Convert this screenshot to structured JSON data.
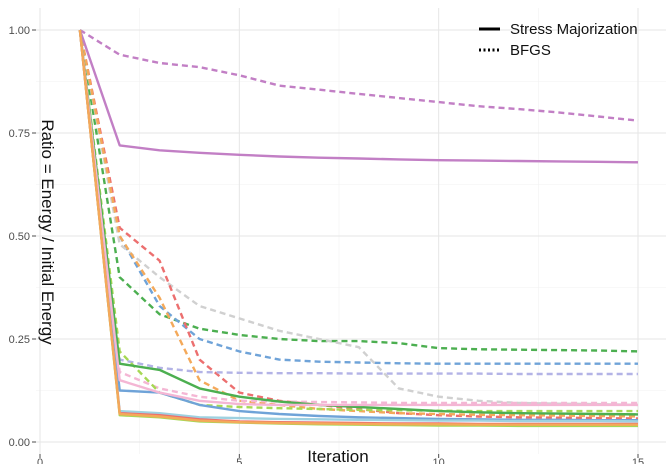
{
  "chart_data": {
    "type": "line",
    "title": "",
    "xlabel": "Iteration",
    "ylabel": "Ratio = Energy / Initial Energy",
    "xlim": [
      0,
      15
    ],
    "ylim": [
      0,
      1
    ],
    "x_ticks": [
      0,
      5,
      10,
      15
    ],
    "y_ticks": [
      0.0,
      0.25,
      0.5,
      0.75,
      1.0
    ],
    "x_tick_labels": [
      "0",
      "5",
      "10",
      "15"
    ],
    "y_tick_labels": [
      "0.00",
      "0.25",
      "0.50",
      "0.75",
      "1.00"
    ],
    "grid": true,
    "legend_position": "top-right",
    "legend": [
      {
        "name": "Stress Majorization",
        "style": "solid"
      },
      {
        "name": "BFGS",
        "style": "dotted"
      }
    ],
    "x": [
      1,
      2,
      3,
      4,
      5,
      6,
      7,
      8,
      9,
      10,
      11,
      12,
      13,
      14,
      15
    ],
    "series": [
      {
        "color": "#c27fc5",
        "dash": "solid",
        "values": [
          1.0,
          0.72,
          0.708,
          0.702,
          0.697,
          0.693,
          0.69,
          0.688,
          0.686,
          0.684,
          0.683,
          0.682,
          0.681,
          0.68,
          0.679
        ]
      },
      {
        "color": "#c27fc5",
        "dash": "dashed",
        "values": [
          1.0,
          0.94,
          0.92,
          0.91,
          0.89,
          0.865,
          0.855,
          0.845,
          0.835,
          0.825,
          0.815,
          0.808,
          0.8,
          0.79,
          0.78
        ]
      },
      {
        "color": "#4caf50",
        "dash": "dashed",
        "values": [
          1.0,
          0.4,
          0.31,
          0.275,
          0.26,
          0.25,
          0.245,
          0.245,
          0.24,
          0.228,
          0.225,
          0.224,
          0.223,
          0.222,
          0.22
        ]
      },
      {
        "color": "#4caf50",
        "dash": "solid",
        "values": [
          1.0,
          0.19,
          0.175,
          0.13,
          0.11,
          0.098,
          0.09,
          0.085,
          0.08,
          0.075,
          0.072,
          0.07,
          0.069,
          0.068,
          0.067
        ]
      },
      {
        "color": "#6fa3d8",
        "dash": "dashed",
        "values": [
          1.0,
          0.5,
          0.33,
          0.25,
          0.22,
          0.2,
          0.195,
          0.193,
          0.191,
          0.19,
          0.19,
          0.19,
          0.19,
          0.19,
          0.19
        ]
      },
      {
        "color": "#6fa3d8",
        "dash": "solid",
        "values": [
          1.0,
          0.125,
          0.12,
          0.09,
          0.075,
          0.068,
          0.063,
          0.06,
          0.058,
          0.056,
          0.055,
          0.054,
          0.054,
          0.053,
          0.053
        ]
      },
      {
        "color": "#d0d0d0",
        "dash": "dashed",
        "values": [
          1.0,
          0.48,
          0.4,
          0.33,
          0.3,
          0.27,
          0.25,
          0.23,
          0.13,
          0.11,
          0.1,
          0.095,
          0.093,
          0.092,
          0.09
        ]
      },
      {
        "color": "#ec6f6f",
        "dash": "dashed",
        "values": [
          1.0,
          0.52,
          0.44,
          0.2,
          0.12,
          0.1,
          0.09,
          0.08,
          0.07,
          0.065,
          0.062,
          0.06,
          0.059,
          0.058,
          0.057
        ]
      },
      {
        "color": "#f4a95a",
        "dash": "dashed",
        "values": [
          1.0,
          0.5,
          0.35,
          0.15,
          0.1,
          0.09,
          0.08,
          0.075,
          0.07,
          0.068,
          0.066,
          0.065,
          0.064,
          0.063,
          0.062
        ]
      },
      {
        "color": "#b3b3e6",
        "dash": "dashed",
        "values": [
          1.0,
          0.2,
          0.18,
          0.17,
          0.168,
          0.167,
          0.167,
          0.166,
          0.166,
          0.166,
          0.166,
          0.165,
          0.165,
          0.165,
          0.165
        ]
      },
      {
        "color": "#f4b6d4",
        "dash": "solid",
        "values": [
          1.0,
          0.15,
          0.12,
          0.1,
          0.092,
          0.09,
          0.09,
          0.09,
          0.09,
          0.09,
          0.09,
          0.09,
          0.09,
          0.09,
          0.09
        ]
      },
      {
        "color": "#f4b6d4",
        "dash": "dashed",
        "values": [
          1.0,
          0.17,
          0.13,
          0.11,
          0.1,
          0.098,
          0.097,
          0.096,
          0.095,
          0.095,
          0.095,
          0.095,
          0.095,
          0.095,
          0.095
        ]
      },
      {
        "color": "#a6d854",
        "dash": "dashed",
        "values": [
          1.0,
          0.22,
          0.12,
          0.09,
          0.085,
          0.082,
          0.08,
          0.078,
          0.077,
          0.076,
          0.075,
          0.075,
          0.075,
          0.075,
          0.075
        ]
      },
      {
        "color": "#a6d854",
        "dash": "solid",
        "values": [
          1.0,
          0.065,
          0.06,
          0.05,
          0.047,
          0.045,
          0.043,
          0.042,
          0.041,
          0.04,
          0.04,
          0.039,
          0.039,
          0.039,
          0.039
        ]
      },
      {
        "color": "#9ed1e0",
        "dash": "solid",
        "values": [
          1.0,
          0.075,
          0.07,
          0.06,
          0.058,
          0.056,
          0.055,
          0.054,
          0.053,
          0.052,
          0.052,
          0.051,
          0.051,
          0.051,
          0.05
        ]
      },
      {
        "color": "#ec6f6f",
        "dash": "solid",
        "values": [
          1.0,
          0.07,
          0.065,
          0.055,
          0.05,
          0.048,
          0.047,
          0.046,
          0.045,
          0.045,
          0.044,
          0.044,
          0.044,
          0.044,
          0.044
        ]
      },
      {
        "color": "#f4a95a",
        "dash": "solid",
        "values": [
          1.0,
          0.068,
          0.062,
          0.052,
          0.048,
          0.046,
          0.045,
          0.044,
          0.043,
          0.043,
          0.042,
          0.042,
          0.042,
          0.042,
          0.042
        ]
      }
    ]
  }
}
